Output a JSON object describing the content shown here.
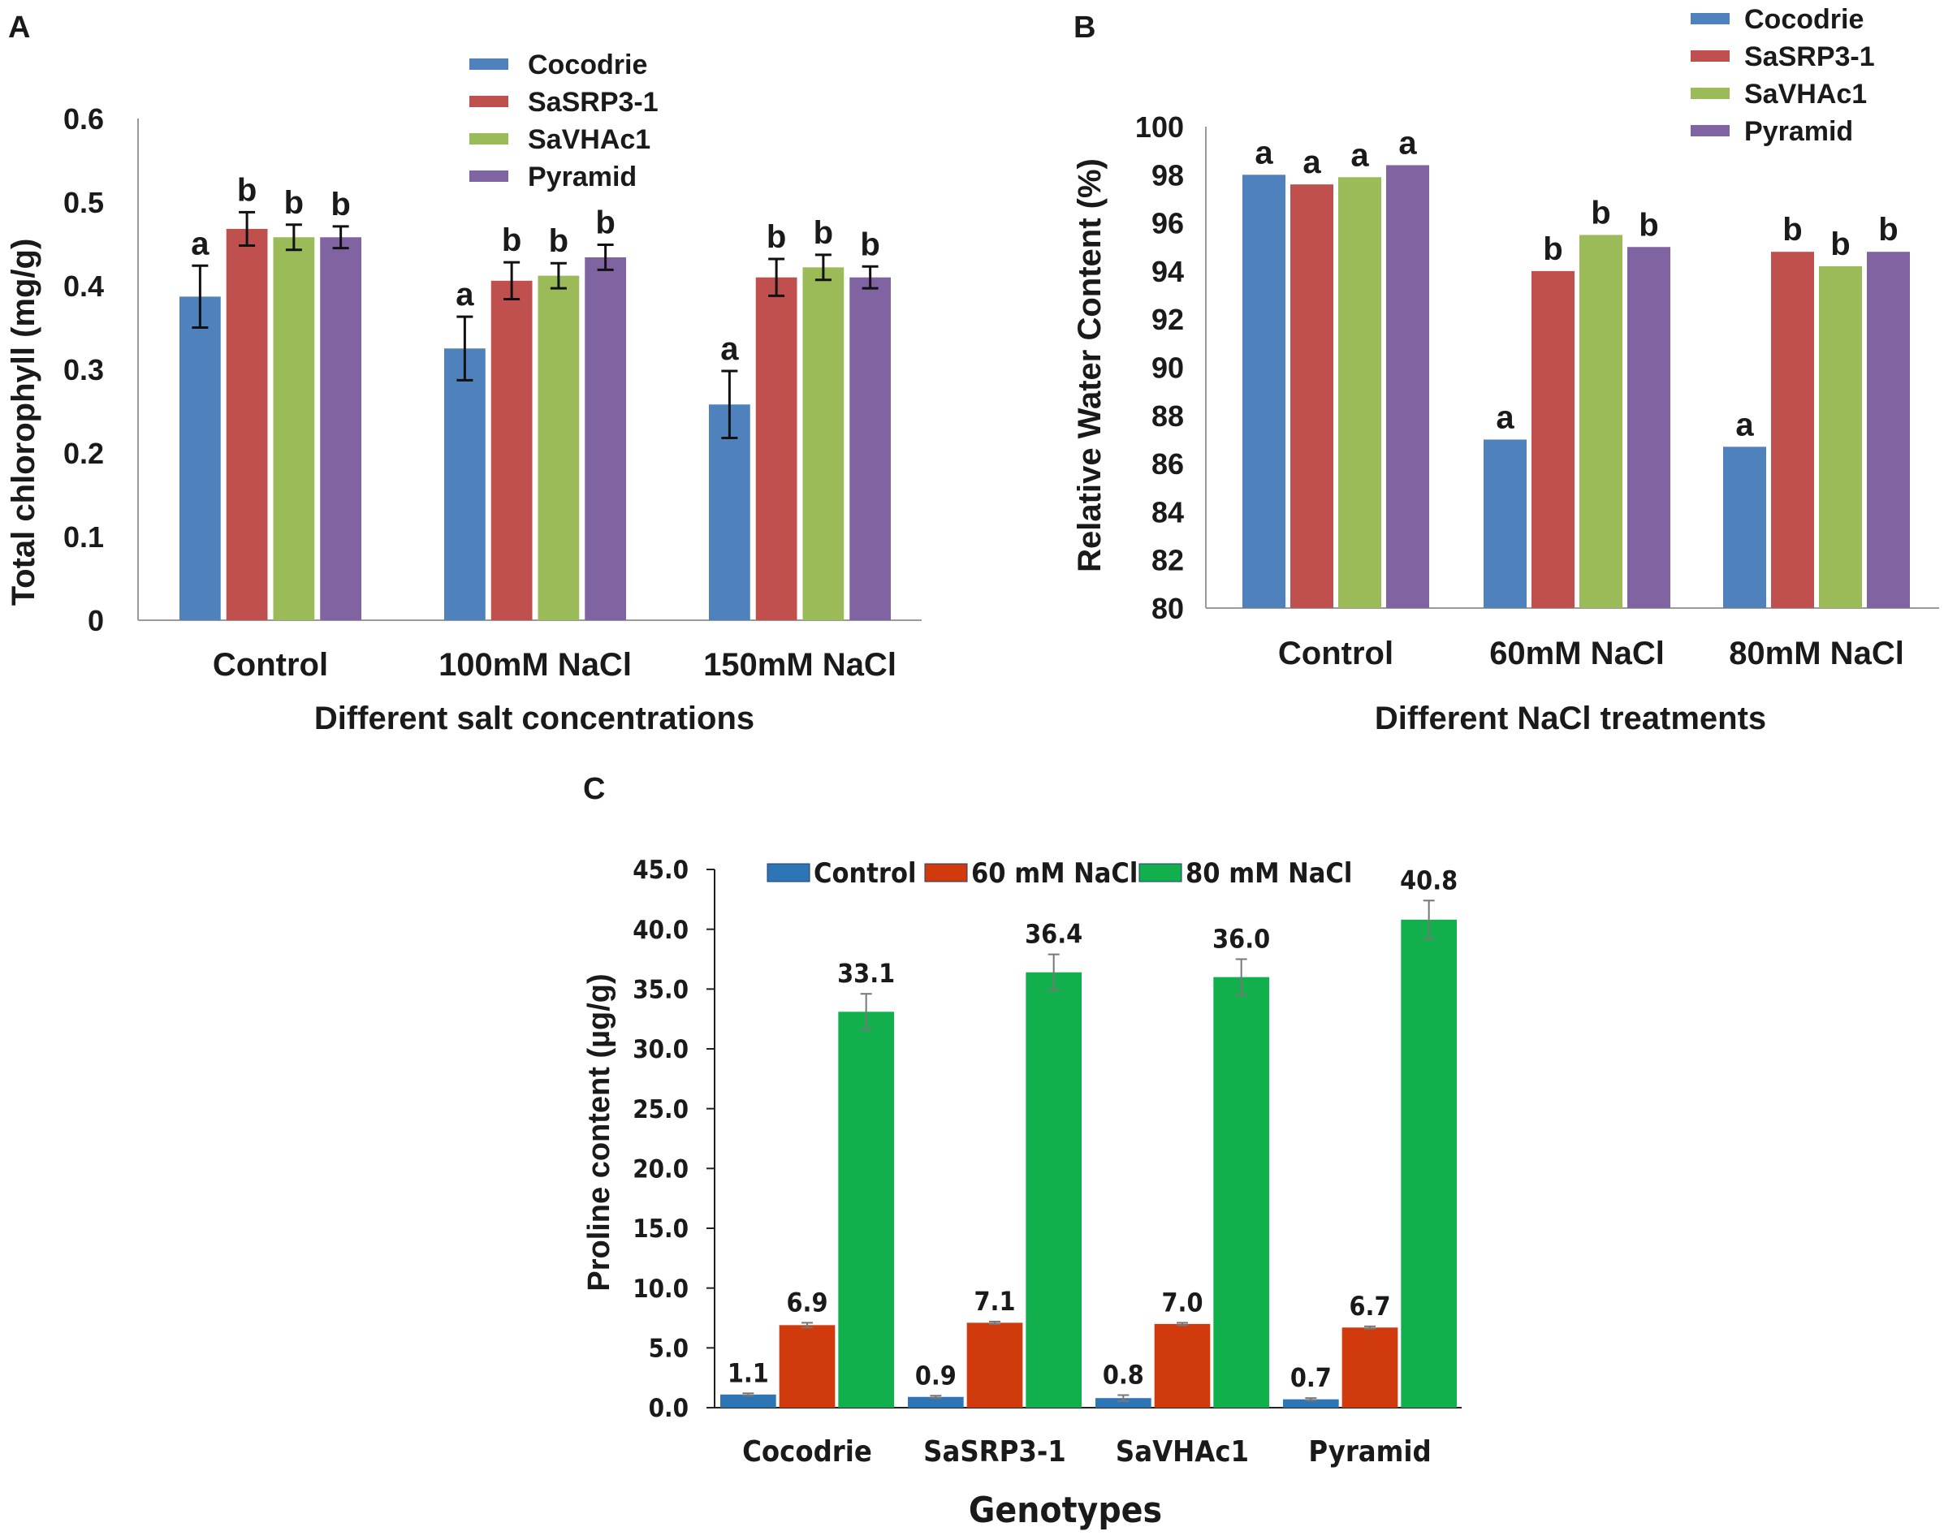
{
  "figure": {
    "panel_labels": [
      "A",
      "B",
      "C"
    ]
  },
  "chart_data": [
    {
      "panel": "A",
      "type": "bar",
      "title": "",
      "xlabel": "Different salt concentrations",
      "ylabel": "Total chlorophyll (mg/g)",
      "ylim": [
        0,
        0.6
      ],
      "yticks": [
        "0",
        "0.1",
        "0.2",
        "0.3",
        "0.4",
        "0.5",
        "0.6"
      ],
      "ytick_values": [
        0,
        0.1,
        0.2,
        0.3,
        0.4,
        0.5,
        0.6
      ],
      "categories": [
        "Control",
        "100mM NaCl",
        "150mM NaCl"
      ],
      "legend_position": "top-center",
      "series": [
        {
          "name": "Cocodrie",
          "color": "#4F81BD",
          "values": [
            0.387,
            0.325,
            0.258
          ],
          "errors": [
            0.037,
            0.038,
            0.04
          ],
          "letters": [
            "a",
            "a",
            "a"
          ]
        },
        {
          "name": "SaSRP3-1",
          "color": "#C0504D",
          "values": [
            0.468,
            0.406,
            0.41
          ],
          "errors": [
            0.02,
            0.022,
            0.022
          ],
          "letters": [
            "b",
            "b",
            "b"
          ]
        },
        {
          "name": "SaVHAc1",
          "color": "#9BBB59",
          "values": [
            0.458,
            0.412,
            0.422
          ],
          "errors": [
            0.015,
            0.015,
            0.015
          ],
          "letters": [
            "b",
            "b",
            "b"
          ]
        },
        {
          "name": "Pyramid",
          "color": "#8064A2",
          "values": [
            0.458,
            0.434,
            0.41
          ],
          "errors": [
            0.013,
            0.015,
            0.013
          ],
          "letters": [
            "b",
            "b",
            "b"
          ]
        }
      ]
    },
    {
      "panel": "B",
      "type": "bar",
      "title": "",
      "xlabel": "Different NaCl treatments",
      "ylabel": "Relative Water Content (%)",
      "ylim": [
        80,
        100
      ],
      "yticks": [
        "80",
        "82",
        "84",
        "86",
        "88",
        "90",
        "92",
        "94",
        "96",
        "98",
        "100"
      ],
      "ytick_values": [
        80,
        82,
        84,
        86,
        88,
        90,
        92,
        94,
        96,
        98,
        100
      ],
      "categories": [
        "Control",
        "60mM NaCl",
        "80mM NaCl"
      ],
      "legend_position": "top-right",
      "series": [
        {
          "name": "Cocodrie",
          "color": "#4F81BD",
          "values": [
            98.0,
            87.0,
            86.7
          ],
          "letters": [
            "a",
            "a",
            "a"
          ]
        },
        {
          "name": "SaSRP3-1",
          "color": "#C0504D",
          "values": [
            97.6,
            94.0,
            94.8
          ],
          "letters": [
            "a",
            "b",
            "b"
          ]
        },
        {
          "name": "SaVHAc1",
          "color": "#9BBB59",
          "values": [
            97.9,
            95.5,
            94.2
          ],
          "letters": [
            "a",
            "b",
            "b"
          ]
        },
        {
          "name": "Pyramid",
          "color": "#8064A2",
          "values": [
            98.4,
            95.0,
            94.8
          ],
          "letters": [
            "a",
            "b",
            "b"
          ]
        }
      ]
    },
    {
      "panel": "C",
      "type": "bar",
      "title": "",
      "xlabel": "Genotypes",
      "ylabel": "Proline content (µg/g)",
      "ylim": [
        0,
        45
      ],
      "yticks": [
        "0.0",
        "5.0",
        "10.0",
        "15.0",
        "20.0",
        "25.0",
        "30.0",
        "35.0",
        "40.0",
        "45.0"
      ],
      "ytick_values": [
        0,
        5,
        10,
        15,
        20,
        25,
        30,
        35,
        40,
        45
      ],
      "categories": [
        "Cocodrie",
        "SaSRP3-1",
        "SaVHAc1",
        "Pyramid"
      ],
      "legend_position": "top",
      "series": [
        {
          "name": "Control",
          "color": "#2E75B6",
          "values": [
            1.1,
            0.9,
            0.8,
            0.7
          ],
          "errors": [
            0.1,
            0.1,
            0.25,
            0.1
          ],
          "labels": [
            "1.1",
            "0.9",
            "0.8",
            "0.7"
          ]
        },
        {
          "name": "60 mM NaCl",
          "color": "#D03A0C",
          "values": [
            6.9,
            7.1,
            7.0,
            6.7
          ],
          "errors": [
            0.2,
            0.1,
            0.1,
            0.1
          ],
          "labels": [
            "6.9",
            "7.1",
            "7.0",
            "6.7"
          ]
        },
        {
          "name": "80 mM NaCl",
          "color": "#12B04D",
          "values": [
            33.1,
            36.4,
            36.0,
            40.8
          ],
          "errors": [
            1.5,
            1.5,
            1.5,
            1.6
          ],
          "labels": [
            "33.1",
            "36.4",
            "36.0",
            "40.8"
          ]
        }
      ]
    }
  ]
}
